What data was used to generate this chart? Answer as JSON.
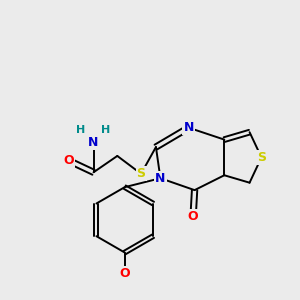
{
  "bg_color": "#ebebeb",
  "atom_colors": {
    "C": "#000000",
    "N": "#0000cc",
    "O": "#ff0000",
    "S": "#cccc00",
    "H": "#008b8b"
  },
  "bond_color": "#000000",
  "figsize": [
    3.0,
    3.0
  ],
  "dpi": 100,
  "bond_lw": 1.4,
  "font_size": 9
}
